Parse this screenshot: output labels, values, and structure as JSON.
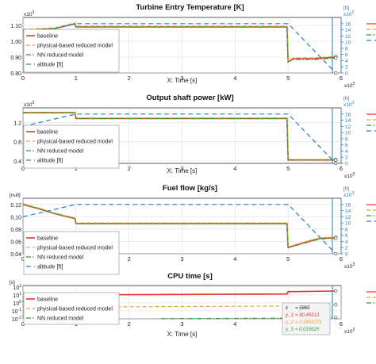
{
  "colors": {
    "baseline": "#e8332a",
    "physical": "#f0a030",
    "nn": "#2aa02a",
    "altitude": "#2a7fc0",
    "cursor": "#1f7fa8",
    "axis_bg": "#ffffff",
    "grid": "#d8d8d8",
    "readout_bg": "#f4f4f4"
  },
  "legend_labels": {
    "baseline": "baseline",
    "physical": "physical-based reduced model",
    "nn": "NN reduced model",
    "altitude": "altitude [ft]"
  },
  "readout": {
    "x_label": "x",
    "x_value": "= 5865",
    "y1_label": "y_1",
    "y1_value": "= 30.45313",
    "y2_label": "y_2",
    "y2_value": "= 0.5859375",
    "y3_label": "y_3",
    "y3_value": "= 0.015625"
  },
  "chart_data": [
    {
      "type": "line",
      "title": "Turbine Entry Temperature [K]",
      "xlabel": "X: Time [s]",
      "x_multiplier": "x10^3",
      "xlim": [
        0,
        6
      ],
      "xticks": [
        0,
        1,
        2,
        3,
        4,
        5,
        6
      ],
      "ylabel": "",
      "y_multiplier": "x10^3",
      "ylim": [
        0.8,
        1.15
      ],
      "yticks": [
        "0.80",
        "0.90",
        "1.00",
        "1.10"
      ],
      "yticks_values": [
        0.8,
        0.9,
        1.0,
        1.1
      ],
      "y2_unit": "[ft]",
      "y2_multiplier": "x10^3",
      "y2lim": [
        0,
        18
      ],
      "y2ticks": [
        0,
        2,
        4,
        6,
        8,
        10,
        12,
        14,
        16
      ],
      "legend": "lower-left",
      "series": [
        {
          "name": "baseline",
          "key": "baseline",
          "x": [
            0,
            0.6,
            0.98,
            1.0,
            4.98,
            5.0,
            5.1,
            5.5,
            5.9
          ],
          "y": [
            1.07,
            1.08,
            1.11,
            1.09,
            1.09,
            0.87,
            0.89,
            0.89,
            0.9
          ]
        },
        {
          "name": "physical-based reduced model",
          "key": "physical",
          "x": [
            0,
            0.6,
            0.98,
            1.0,
            4.98,
            5.0,
            5.1,
            5.5,
            5.9
          ],
          "y": [
            1.075,
            1.085,
            1.115,
            1.095,
            1.095,
            0.875,
            0.895,
            0.895,
            0.905
          ]
        },
        {
          "name": "NN reduced model",
          "key": "nn",
          "x": [
            0,
            0.6,
            0.98,
            1.0,
            4.98,
            5.0,
            5.1,
            5.5,
            5.9
          ],
          "y": [
            1.07,
            1.08,
            1.11,
            1.09,
            1.09,
            0.87,
            0.885,
            0.885,
            0.895
          ]
        },
        {
          "name": "altitude [ft]",
          "key": "altitude",
          "axis": "right",
          "x": [
            0,
            1,
            5,
            5.9
          ],
          "y": [
            12,
            16,
            16,
            0
          ]
        }
      ]
    },
    {
      "type": "line",
      "title": "Output shaft power [kW]",
      "xlabel": "X: Time [s]",
      "x_multiplier": "x10^3",
      "xlim": [
        0,
        6
      ],
      "xticks": [
        0,
        1,
        2,
        3,
        4,
        5,
        6
      ],
      "ylabel": "",
      "y_multiplier": "x10^3",
      "ylim": [
        0.35,
        1.5
      ],
      "yticks": [
        "0.4",
        "0.8",
        "1.2"
      ],
      "yticks_values": [
        0.4,
        0.8,
        1.2
      ],
      "y2_unit": "[ft]",
      "y2_multiplier": "x10^3",
      "y2lim": [
        0,
        18
      ],
      "y2ticks": [
        0,
        2,
        4,
        6,
        8,
        10,
        12,
        14,
        16
      ],
      "legend": "lower-left",
      "series": [
        {
          "name": "baseline",
          "key": "baseline",
          "x": [
            0,
            0.98,
            1.0,
            4.98,
            5.0,
            5.9
          ],
          "y": [
            1.4,
            1.4,
            1.28,
            1.28,
            0.42,
            0.42
          ]
        },
        {
          "name": "physical-based reduced model",
          "key": "physical",
          "x": [
            0,
            0.98,
            1.0,
            4.98,
            5.0,
            5.9
          ],
          "y": [
            1.41,
            1.41,
            1.29,
            1.29,
            0.43,
            0.43
          ]
        },
        {
          "name": "NN reduced model",
          "key": "nn",
          "x": [
            0,
            0.98,
            1.0,
            4.98,
            5.0,
            5.9
          ],
          "y": [
            1.4,
            1.4,
            1.28,
            1.28,
            0.42,
            0.42
          ]
        },
        {
          "name": "altitude [ft]",
          "key": "altitude",
          "axis": "right",
          "x": [
            0,
            1,
            5,
            5.9
          ],
          "y": [
            12,
            16,
            16,
            0
          ]
        }
      ]
    },
    {
      "type": "line",
      "title": "Fuel flow [kg/s]",
      "xlabel": "",
      "x_multiplier": "x10^3",
      "xlim": [
        0,
        6
      ],
      "xticks": [
        0,
        1,
        2,
        3,
        4,
        5,
        6
      ],
      "ylabel": "[null]",
      "y_multiplier": "",
      "ylim": [
        0.04,
        0.13
      ],
      "yticks": [
        "0.04",
        "0.06",
        "0.08",
        "0.10",
        "0.12"
      ],
      "yticks_values": [
        0.04,
        0.06,
        0.08,
        0.1,
        0.12
      ],
      "y2_unit": "[ft]",
      "y2_multiplier": "x10^3",
      "y2lim": [
        0,
        18
      ],
      "y2ticks": [
        0,
        2,
        4,
        6,
        8,
        10,
        12,
        14,
        16
      ],
      "legend": "lower-left",
      "series": [
        {
          "name": "baseline",
          "key": "baseline",
          "x": [
            0,
            0.3,
            0.6,
            0.98,
            1.0,
            4.98,
            5.0,
            5.3,
            5.6,
            5.9
          ],
          "y": [
            0.12,
            0.113,
            0.105,
            0.097,
            0.089,
            0.089,
            0.05,
            0.058,
            0.065,
            0.066
          ]
        },
        {
          "name": "physical-based reduced model",
          "key": "physical",
          "x": [
            0,
            0.3,
            0.6,
            0.98,
            1.0,
            4.98,
            5.0,
            5.3,
            5.6,
            5.9
          ],
          "y": [
            0.121,
            0.114,
            0.106,
            0.098,
            0.09,
            0.09,
            0.051,
            0.059,
            0.066,
            0.067
          ]
        },
        {
          "name": "NN reduced model",
          "key": "nn",
          "x": [
            0,
            0.3,
            0.6,
            0.98,
            1.0,
            4.98,
            5.0,
            5.3,
            5.6,
            5.9
          ],
          "y": [
            0.12,
            0.113,
            0.105,
            0.097,
            0.089,
            0.089,
            0.05,
            0.057,
            0.064,
            0.065
          ]
        },
        {
          "name": "altitude [ft]",
          "key": "altitude",
          "axis": "right",
          "x": [
            0,
            1,
            5,
            5.9
          ],
          "y": [
            12,
            16,
            16,
            0
          ]
        }
      ]
    },
    {
      "type": "line",
      "title": "CPU time [s]",
      "xlabel": "X: Time [s]",
      "x_multiplier": "x10^3",
      "xlim": [
        0,
        6
      ],
      "xticks": [
        0,
        1,
        2,
        3,
        4,
        5,
        6
      ],
      "ylabel": "[s]",
      "y_multiplier": "",
      "yscale": "log",
      "ylim": [
        0.01,
        150
      ],
      "yticks": [
        "10^-2",
        "10^-1",
        "10^0",
        "10^1",
        "10^2"
      ],
      "yticks_values": [
        0.01,
        0.1,
        1,
        10,
        100
      ],
      "legend": "lower-left",
      "series": [
        {
          "name": "baseline",
          "key": "baseline",
          "x": [
            0,
            0.3,
            0.6,
            0.98,
            1.0,
            4.98,
            5.0,
            5.9
          ],
          "y": [
            1.5,
            3,
            5,
            7,
            10,
            13,
            25,
            30.45
          ]
        },
        {
          "name": "physical-based reduced model",
          "key": "physical",
          "x": [
            0,
            0.5,
            0.98,
            1.0,
            4.98,
            5.0,
            5.9
          ],
          "y": [
            0.03,
            0.12,
            0.2,
            0.3,
            0.4,
            0.55,
            0.586
          ]
        },
        {
          "name": "NN reduced model",
          "key": "nn",
          "x": [
            2.6,
            4.98,
            5.0,
            5.9
          ],
          "y": [
            0.0105,
            0.012,
            0.0156,
            0.0156
          ]
        }
      ]
    }
  ]
}
